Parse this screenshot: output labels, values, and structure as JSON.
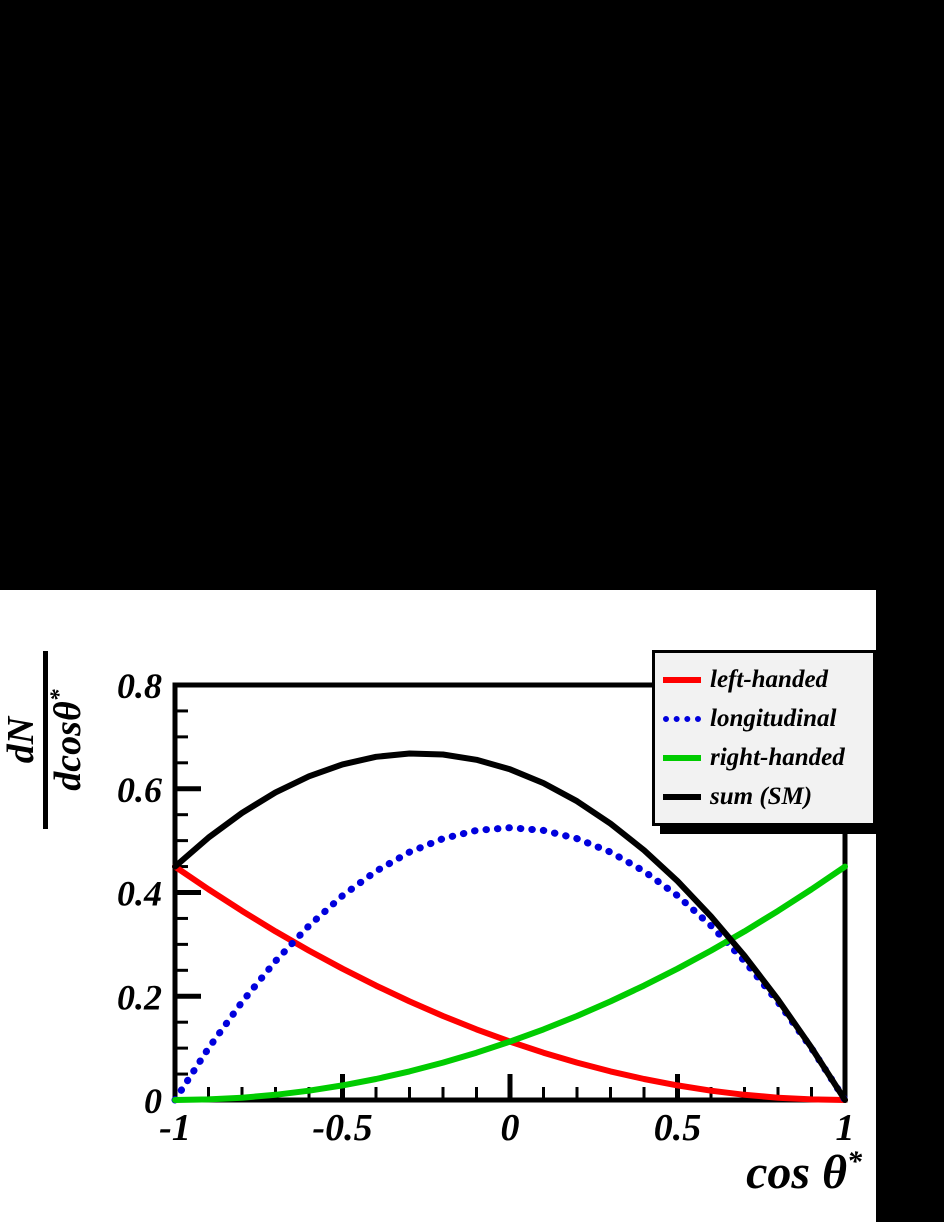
{
  "labels": {
    "ylabel_numerator": "dN",
    "ylabel_denominator_base": "dcosθ",
    "ylabel_denominator_sup": "*",
    "xlabel_base": "cos θ",
    "xlabel_sup": "*"
  },
  "colors": {
    "background": "#000000",
    "panel": "#ffffff",
    "frame": "#000000",
    "legend_background": "#f2f2f2",
    "left_handed": "#ff0000",
    "longitudinal": "#0000dd",
    "right_handed": "#00cc00",
    "sum": "#000000"
  },
  "chart_data": {
    "type": "line",
    "title": "",
    "xlabel": "cos θ*",
    "ylabel": "dN/dcosθ*",
    "xlim": [
      -1,
      1
    ],
    "ylim": [
      0,
      0.8
    ],
    "grid": false,
    "legend_position": "top-right",
    "xticks": {
      "values": [
        -1,
        -0.5,
        0,
        0.5,
        1
      ],
      "labels": [
        "-1",
        "-0.5",
        "0",
        "0.5",
        "1"
      ]
    },
    "yticks": {
      "values": [
        0,
        0.2,
        0.4,
        0.6,
        0.8
      ],
      "labels": [
        "0",
        "0.2",
        "0.4",
        "0.6",
        "0.8"
      ]
    },
    "x_minor_step": 0.1,
    "y_minor_step": 0.05,
    "x": [
      -1,
      -0.9,
      -0.8,
      -0.7,
      -0.6,
      -0.5,
      -0.4,
      -0.3,
      -0.2,
      -0.1,
      0,
      0.1,
      0.2,
      0.3,
      0.4,
      0.5,
      0.6,
      0.7,
      0.8,
      0.9,
      1
    ],
    "series": [
      {
        "name": "left-handed",
        "color": "#ff0000",
        "style": "solid",
        "width": 6,
        "values": [
          0.45,
          0.4061,
          0.3645,
          0.3251,
          0.288,
          0.2531,
          0.2205,
          0.1901,
          0.162,
          0.1361,
          0.1125,
          0.0911,
          0.072,
          0.0551,
          0.0405,
          0.0281,
          0.018,
          0.0101,
          0.0045,
          0.0011,
          0
        ]
      },
      {
        "name": "longitudinal",
        "color": "#0000dd",
        "style": "dotted",
        "width": 7,
        "values": [
          0,
          0.0998,
          0.189,
          0.2678,
          0.336,
          0.3938,
          0.441,
          0.4778,
          0.504,
          0.5198,
          0.525,
          0.5198,
          0.504,
          0.4778,
          0.441,
          0.3938,
          0.336,
          0.2678,
          0.189,
          0.0998,
          0
        ]
      },
      {
        "name": "right-handed",
        "color": "#00cc00",
        "style": "solid",
        "width": 6,
        "values": [
          0,
          0.0011,
          0.0045,
          0.0101,
          0.018,
          0.0281,
          0.0405,
          0.0551,
          0.072,
          0.0911,
          0.1125,
          0.1361,
          0.162,
          0.1901,
          0.2205,
          0.2531,
          0.288,
          0.3251,
          0.3645,
          0.4061,
          0.45
        ]
      },
      {
        "name": "sum (SM)",
        "color": "#000000",
        "style": "solid",
        "width": 6,
        "values": [
          0.45,
          0.5059,
          0.5535,
          0.5929,
          0.624,
          0.6469,
          0.6615,
          0.6679,
          0.666,
          0.6559,
          0.6375,
          0.6109,
          0.576,
          0.5329,
          0.4815,
          0.4219,
          0.354,
          0.2779,
          0.1935,
          0.1009,
          0
        ]
      }
    ]
  }
}
